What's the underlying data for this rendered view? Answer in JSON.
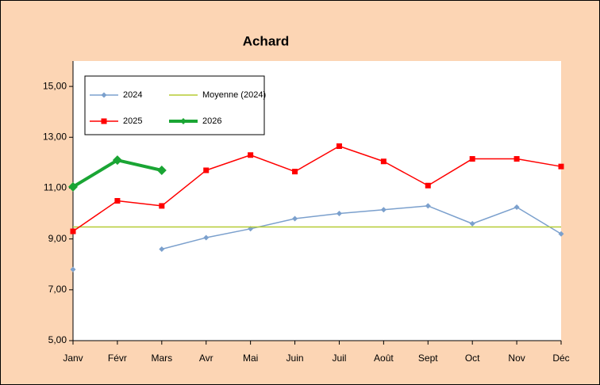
{
  "chart_data": {
    "type": "line",
    "title": "Achard",
    "categories": [
      "Janv",
      "Févr",
      "Mars",
      "Avr",
      "Mai",
      "Juin",
      "Juil",
      "Août",
      "Sept",
      "Oct",
      "Nov",
      "Déc"
    ],
    "series": [
      {
        "name": "2024",
        "color": "#7ba0cd",
        "marker": "diamond",
        "values": [
          7.8,
          null,
          8.6,
          9.05,
          9.4,
          9.8,
          10.0,
          10.15,
          10.3,
          9.6,
          10.25,
          9.2
        ]
      },
      {
        "name": "Moyenne (2024)",
        "color": "#b5cc33",
        "marker": "none",
        "values": [
          9.47,
          9.47,
          9.47,
          9.47,
          9.47,
          9.47,
          9.47,
          9.47,
          9.47,
          9.47,
          9.47,
          9.47
        ]
      },
      {
        "name": "2025",
        "color": "#ff0000",
        "marker": "square",
        "values": [
          9.3,
          10.5,
          10.3,
          11.7,
          12.3,
          11.65,
          12.65,
          12.05,
          11.1,
          12.15,
          12.15,
          11.85
        ]
      },
      {
        "name": "2026",
        "color": "#1aa534",
        "marker": "bigdiamond",
        "values": [
          11.05,
          12.1,
          11.7,
          null,
          null,
          null,
          null,
          null,
          null,
          null,
          null,
          null
        ]
      }
    ],
    "ylim": [
      5,
      16
    ],
    "yticks": [
      {
        "value": 5,
        "label": "5,00"
      },
      {
        "value": 7,
        "label": "7,00"
      },
      {
        "value": 9,
        "label": "9,00"
      },
      {
        "value": 11,
        "label": "11,00"
      },
      {
        "value": 13,
        "label": "13,00"
      },
      {
        "value": 15,
        "label": "15,00"
      }
    ],
    "grid": false
  }
}
